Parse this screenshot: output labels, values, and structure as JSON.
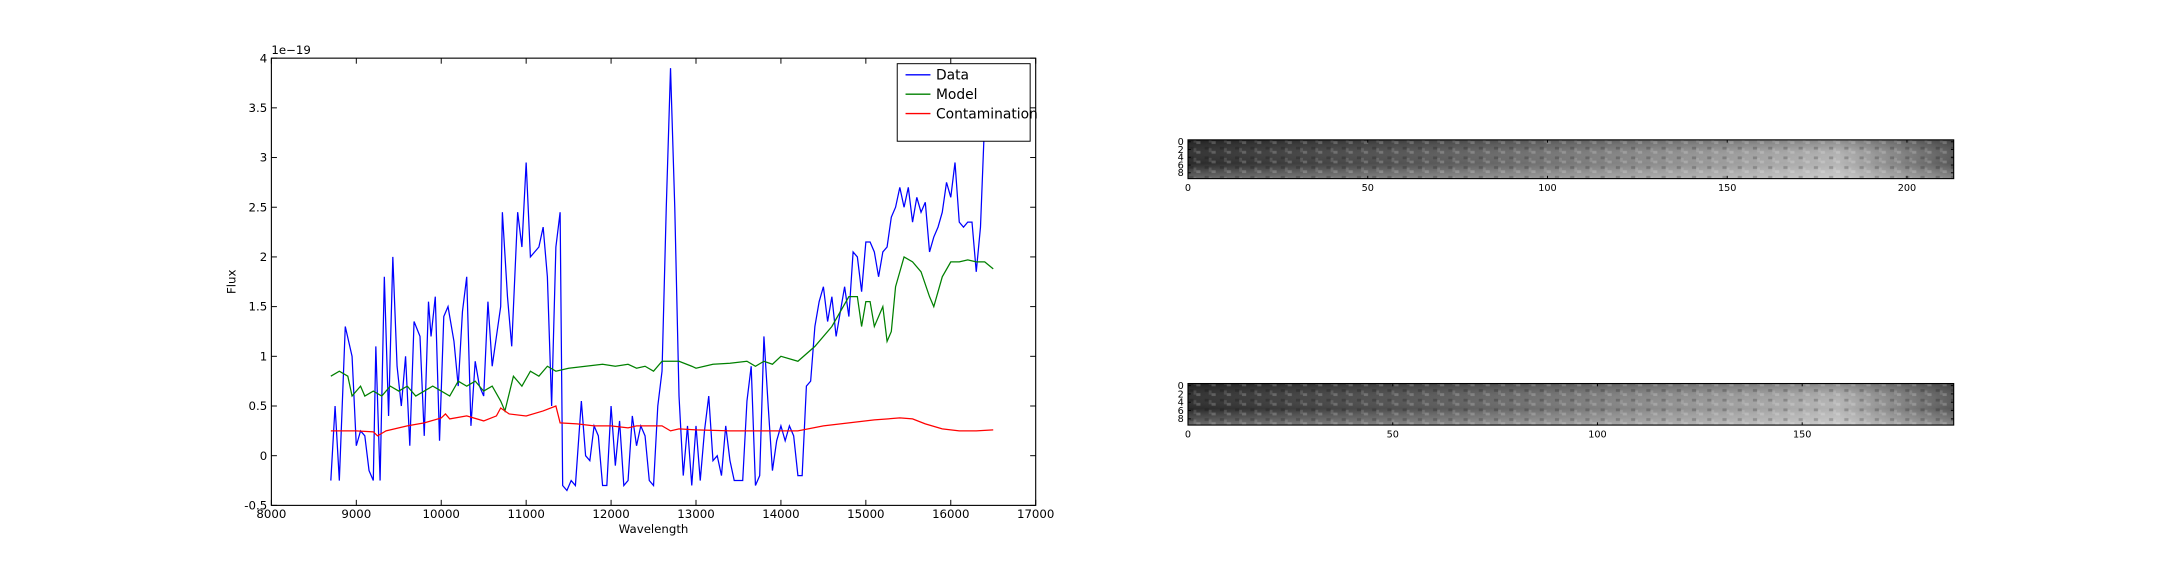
{
  "chart_data": [
    {
      "type": "line",
      "x_label": "Wavelength",
      "y_label": "Flux",
      "y_offset_label": "1e−19",
      "xlim": [
        8000,
        17000
      ],
      "xticks": [
        8000,
        9000,
        10000,
        11000,
        12000,
        13000,
        14000,
        15000,
        16000,
        17000
      ],
      "ylim": [
        -0.5,
        4.0
      ],
      "yticks": [
        -0.5,
        0.0,
        0.5,
        1.0,
        1.5,
        2.0,
        2.5,
        3.0,
        3.5,
        4.0
      ],
      "legend": "upper right",
      "series": [
        {
          "name": "Data",
          "color": "#0000ff",
          "x": [
            8700,
            8750,
            8800,
            8870,
            8950,
            9000,
            9050,
            9100,
            9150,
            9200,
            9230,
            9280,
            9330,
            9380,
            9430,
            9480,
            9530,
            9580,
            9630,
            9680,
            9750,
            9800,
            9850,
            9880,
            9930,
            9980,
            10030,
            10080,
            10150,
            10200,
            10250,
            10300,
            10350,
            10400,
            10450,
            10500,
            10550,
            10600,
            10650,
            10700,
            10720,
            10780,
            10830,
            10900,
            10950,
            11000,
            11050,
            11150,
            11200,
            11250,
            11300,
            11350,
            11400,
            11430,
            11480,
            11530,
            11580,
            11650,
            11700,
            11750,
            11800,
            11850,
            11900,
            11950,
            12000,
            12050,
            12100,
            12150,
            12200,
            12250,
            12300,
            12350,
            12400,
            12450,
            12500,
            12550,
            12600,
            12650,
            12700,
            12750,
            12800,
            12850,
            12900,
            12950,
            13000,
            13050,
            13100,
            13150,
            13200,
            13250,
            13300,
            13350,
            13400,
            13450,
            13500,
            13550,
            13600,
            13650,
            13700,
            13750,
            13800,
            13850,
            13900,
            13950,
            14000,
            14050,
            14100,
            14150,
            14200,
            14250,
            14300,
            14350,
            14400,
            14450,
            14500,
            14550,
            14600,
            14650,
            14700,
            14750,
            14800,
            14850,
            14900,
            14950,
            15000,
            15050,
            15100,
            15150,
            15200,
            15250,
            15300,
            15350,
            15400,
            15450,
            15500,
            15550,
            15600,
            15650,
            15700,
            15750,
            15800,
            15850,
            15900,
            15950,
            16000,
            16050,
            16100,
            16150,
            16200,
            16250,
            16300,
            16350,
            16400
          ],
          "values": [
            -0.25,
            0.5,
            -0.25,
            1.3,
            1.0,
            0.1,
            0.25,
            0.2,
            -0.15,
            -0.25,
            1.1,
            -0.25,
            1.8,
            0.4,
            2.0,
            0.9,
            0.5,
            1.0,
            0.1,
            1.35,
            1.2,
            0.2,
            1.55,
            1.2,
            1.6,
            0.15,
            1.4,
            1.5,
            1.15,
            0.7,
            1.45,
            1.8,
            0.3,
            0.95,
            0.7,
            0.6,
            1.55,
            0.9,
            1.2,
            1.5,
            2.45,
            1.6,
            1.1,
            2.45,
            2.1,
            2.95,
            2.0,
            2.1,
            2.3,
            1.8,
            0.5,
            2.1,
            2.45,
            -0.3,
            -0.35,
            -0.25,
            -0.3,
            0.55,
            0.0,
            -0.05,
            0.3,
            0.2,
            -0.3,
            -0.3,
            0.5,
            -0.1,
            0.35,
            -0.3,
            -0.25,
            0.4,
            0.1,
            0.3,
            0.2,
            -0.25,
            -0.3,
            0.5,
            0.85,
            2.5,
            3.9,
            2.5,
            0.6,
            -0.2,
            0.3,
            -0.3,
            0.3,
            -0.25,
            0.25,
            0.6,
            -0.05,
            0.0,
            -0.2,
            0.3,
            -0.05,
            -0.25,
            -0.25,
            -0.25,
            0.55,
            0.9,
            -0.3,
            -0.2,
            1.2,
            0.5,
            -0.15,
            0.15,
            0.3,
            0.15,
            0.3,
            0.2,
            -0.2,
            -0.2,
            0.7,
            0.75,
            1.3,
            1.55,
            1.7,
            1.35,
            1.6,
            1.2,
            1.45,
            1.7,
            1.4,
            2.05,
            2.0,
            1.65,
            2.15,
            2.15,
            2.05,
            1.8,
            2.05,
            2.1,
            2.4,
            2.5,
            2.7,
            2.5,
            2.7,
            2.35,
            2.6,
            2.45,
            2.55,
            2.05,
            2.2,
            2.3,
            2.45,
            2.75,
            2.6,
            2.95,
            2.35,
            2.3,
            2.35,
            2.35,
            1.85,
            2.3,
            3.4
          ]
        },
        {
          "name": "Model",
          "color": "#008000",
          "x": [
            8700,
            8800,
            8900,
            8950,
            9050,
            9100,
            9200,
            9300,
            9400,
            9500,
            9600,
            9700,
            9800,
            9900,
            10000,
            10100,
            10200,
            10300,
            10400,
            10500,
            10600,
            10700,
            10750,
            10850,
            10950,
            11050,
            11150,
            11250,
            11350,
            11500,
            11700,
            11900,
            12050,
            12200,
            12300,
            12400,
            12500,
            12600,
            12800,
            12950,
            13000,
            13200,
            13400,
            13600,
            13700,
            13800,
            13900,
            14000,
            14200,
            14400,
            14600,
            14800,
            14900,
            14950,
            15000,
            15050,
            15100,
            15200,
            15250,
            15300,
            15350,
            15450,
            15550,
            15650,
            15750,
            15800,
            15900,
            16000,
            16100,
            16200,
            16300,
            16400,
            16500
          ],
          "values": [
            0.8,
            0.85,
            0.8,
            0.6,
            0.7,
            0.6,
            0.65,
            0.6,
            0.7,
            0.65,
            0.7,
            0.6,
            0.65,
            0.7,
            0.65,
            0.6,
            0.75,
            0.7,
            0.75,
            0.65,
            0.7,
            0.55,
            0.45,
            0.8,
            0.7,
            0.85,
            0.8,
            0.9,
            0.85,
            0.88,
            0.9,
            0.92,
            0.9,
            0.92,
            0.88,
            0.9,
            0.85,
            0.95,
            0.95,
            0.9,
            0.88,
            0.92,
            0.93,
            0.95,
            0.9,
            0.95,
            0.92,
            1.0,
            0.95,
            1.1,
            1.3,
            1.6,
            1.6,
            1.3,
            1.55,
            1.55,
            1.3,
            1.5,
            1.15,
            1.25,
            1.7,
            2.0,
            1.95,
            1.85,
            1.6,
            1.5,
            1.8,
            1.95,
            1.95,
            1.97,
            1.95,
            1.95,
            1.88
          ]
        },
        {
          "name": "Contamination",
          "color": "#ff0000",
          "x": [
            8700,
            9000,
            9200,
            9250,
            9350,
            9600,
            9800,
            10000,
            10050,
            10100,
            10300,
            10500,
            10650,
            10700,
            10800,
            11000,
            11200,
            11350,
            11400,
            11600,
            11800,
            12000,
            12200,
            12300,
            12600,
            12700,
            12800,
            13000,
            13400,
            13800,
            14200,
            14500,
            14800,
            15100,
            15400,
            15550,
            15700,
            15900,
            16100,
            16300,
            16500
          ],
          "values": [
            0.25,
            0.25,
            0.24,
            0.2,
            0.25,
            0.3,
            0.33,
            0.38,
            0.42,
            0.37,
            0.4,
            0.35,
            0.4,
            0.48,
            0.42,
            0.4,
            0.45,
            0.5,
            0.33,
            0.32,
            0.3,
            0.3,
            0.28,
            0.3,
            0.3,
            0.25,
            0.27,
            0.26,
            0.25,
            0.25,
            0.25,
            0.3,
            0.33,
            0.36,
            0.38,
            0.37,
            0.32,
            0.27,
            0.25,
            0.25,
            0.26
          ]
        }
      ]
    },
    {
      "type": "image",
      "xlim": [
        0,
        213
      ],
      "xticks": [
        0,
        50,
        100,
        150,
        200
      ],
      "ylim": [
        9.5,
        -0.5
      ],
      "yticks": [
        0,
        2,
        4,
        6,
        8
      ]
    },
    {
      "type": "image",
      "xlim": [
        0,
        187
      ],
      "xticks": [
        0,
        50,
        100,
        150
      ],
      "ylim": [
        9.5,
        -0.5
      ],
      "yticks": [
        0,
        2,
        4,
        6,
        8
      ]
    }
  ]
}
